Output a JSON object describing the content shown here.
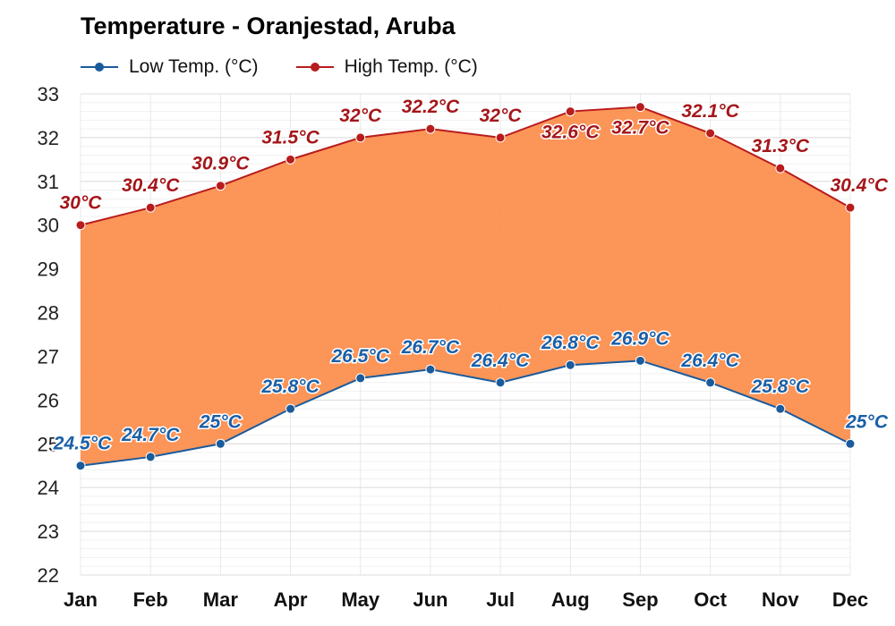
{
  "chart_data": {
    "type": "area",
    "title": "Temperature - Oranjestad, Aruba",
    "xlabel": "",
    "ylabel": "",
    "categories": [
      "Jan",
      "Feb",
      "Mar",
      "Apr",
      "May",
      "Jun",
      "Jul",
      "Aug",
      "Sep",
      "Oct",
      "Nov",
      "Dec"
    ],
    "ylim": [
      22,
      33
    ],
    "yticks": [
      22,
      23,
      24,
      25,
      26,
      27,
      28,
      29,
      30,
      31,
      32,
      33
    ],
    "grid": true,
    "legend_position": "top-left",
    "fill_between_color": "#fc8c4a",
    "series": [
      {
        "name": "Low Temp. (°C)",
        "color": "#1a5b9c",
        "label_color": "#1a5fa8",
        "values": [
          24.5,
          24.7,
          25,
          25.8,
          26.5,
          26.7,
          26.4,
          26.8,
          26.9,
          26.4,
          25.8,
          25
        ],
        "labels": [
          "24.5°C",
          "24.7°C",
          "25°C",
          "25.8°C",
          "26.5°C",
          "26.7°C",
          "26.4°C",
          "26.8°C",
          "26.9°C",
          "26.4°C",
          "25.8°C",
          "25°C"
        ]
      },
      {
        "name": "High Temp. (°C)",
        "color": "#b81c1c",
        "label_color": "#a4161a",
        "values": [
          30,
          30.4,
          30.9,
          31.5,
          32,
          32.2,
          32,
          32.6,
          32.7,
          32.1,
          31.3,
          30.4
        ],
        "labels": [
          "30°C",
          "30.4°C",
          "30.9°C",
          "31.5°C",
          "32°C",
          "32.2°C",
          "32°C",
          "32.6°C",
          "32.7°C",
          "32.1°C",
          "31.3°C",
          "30.4°C"
        ]
      }
    ]
  }
}
